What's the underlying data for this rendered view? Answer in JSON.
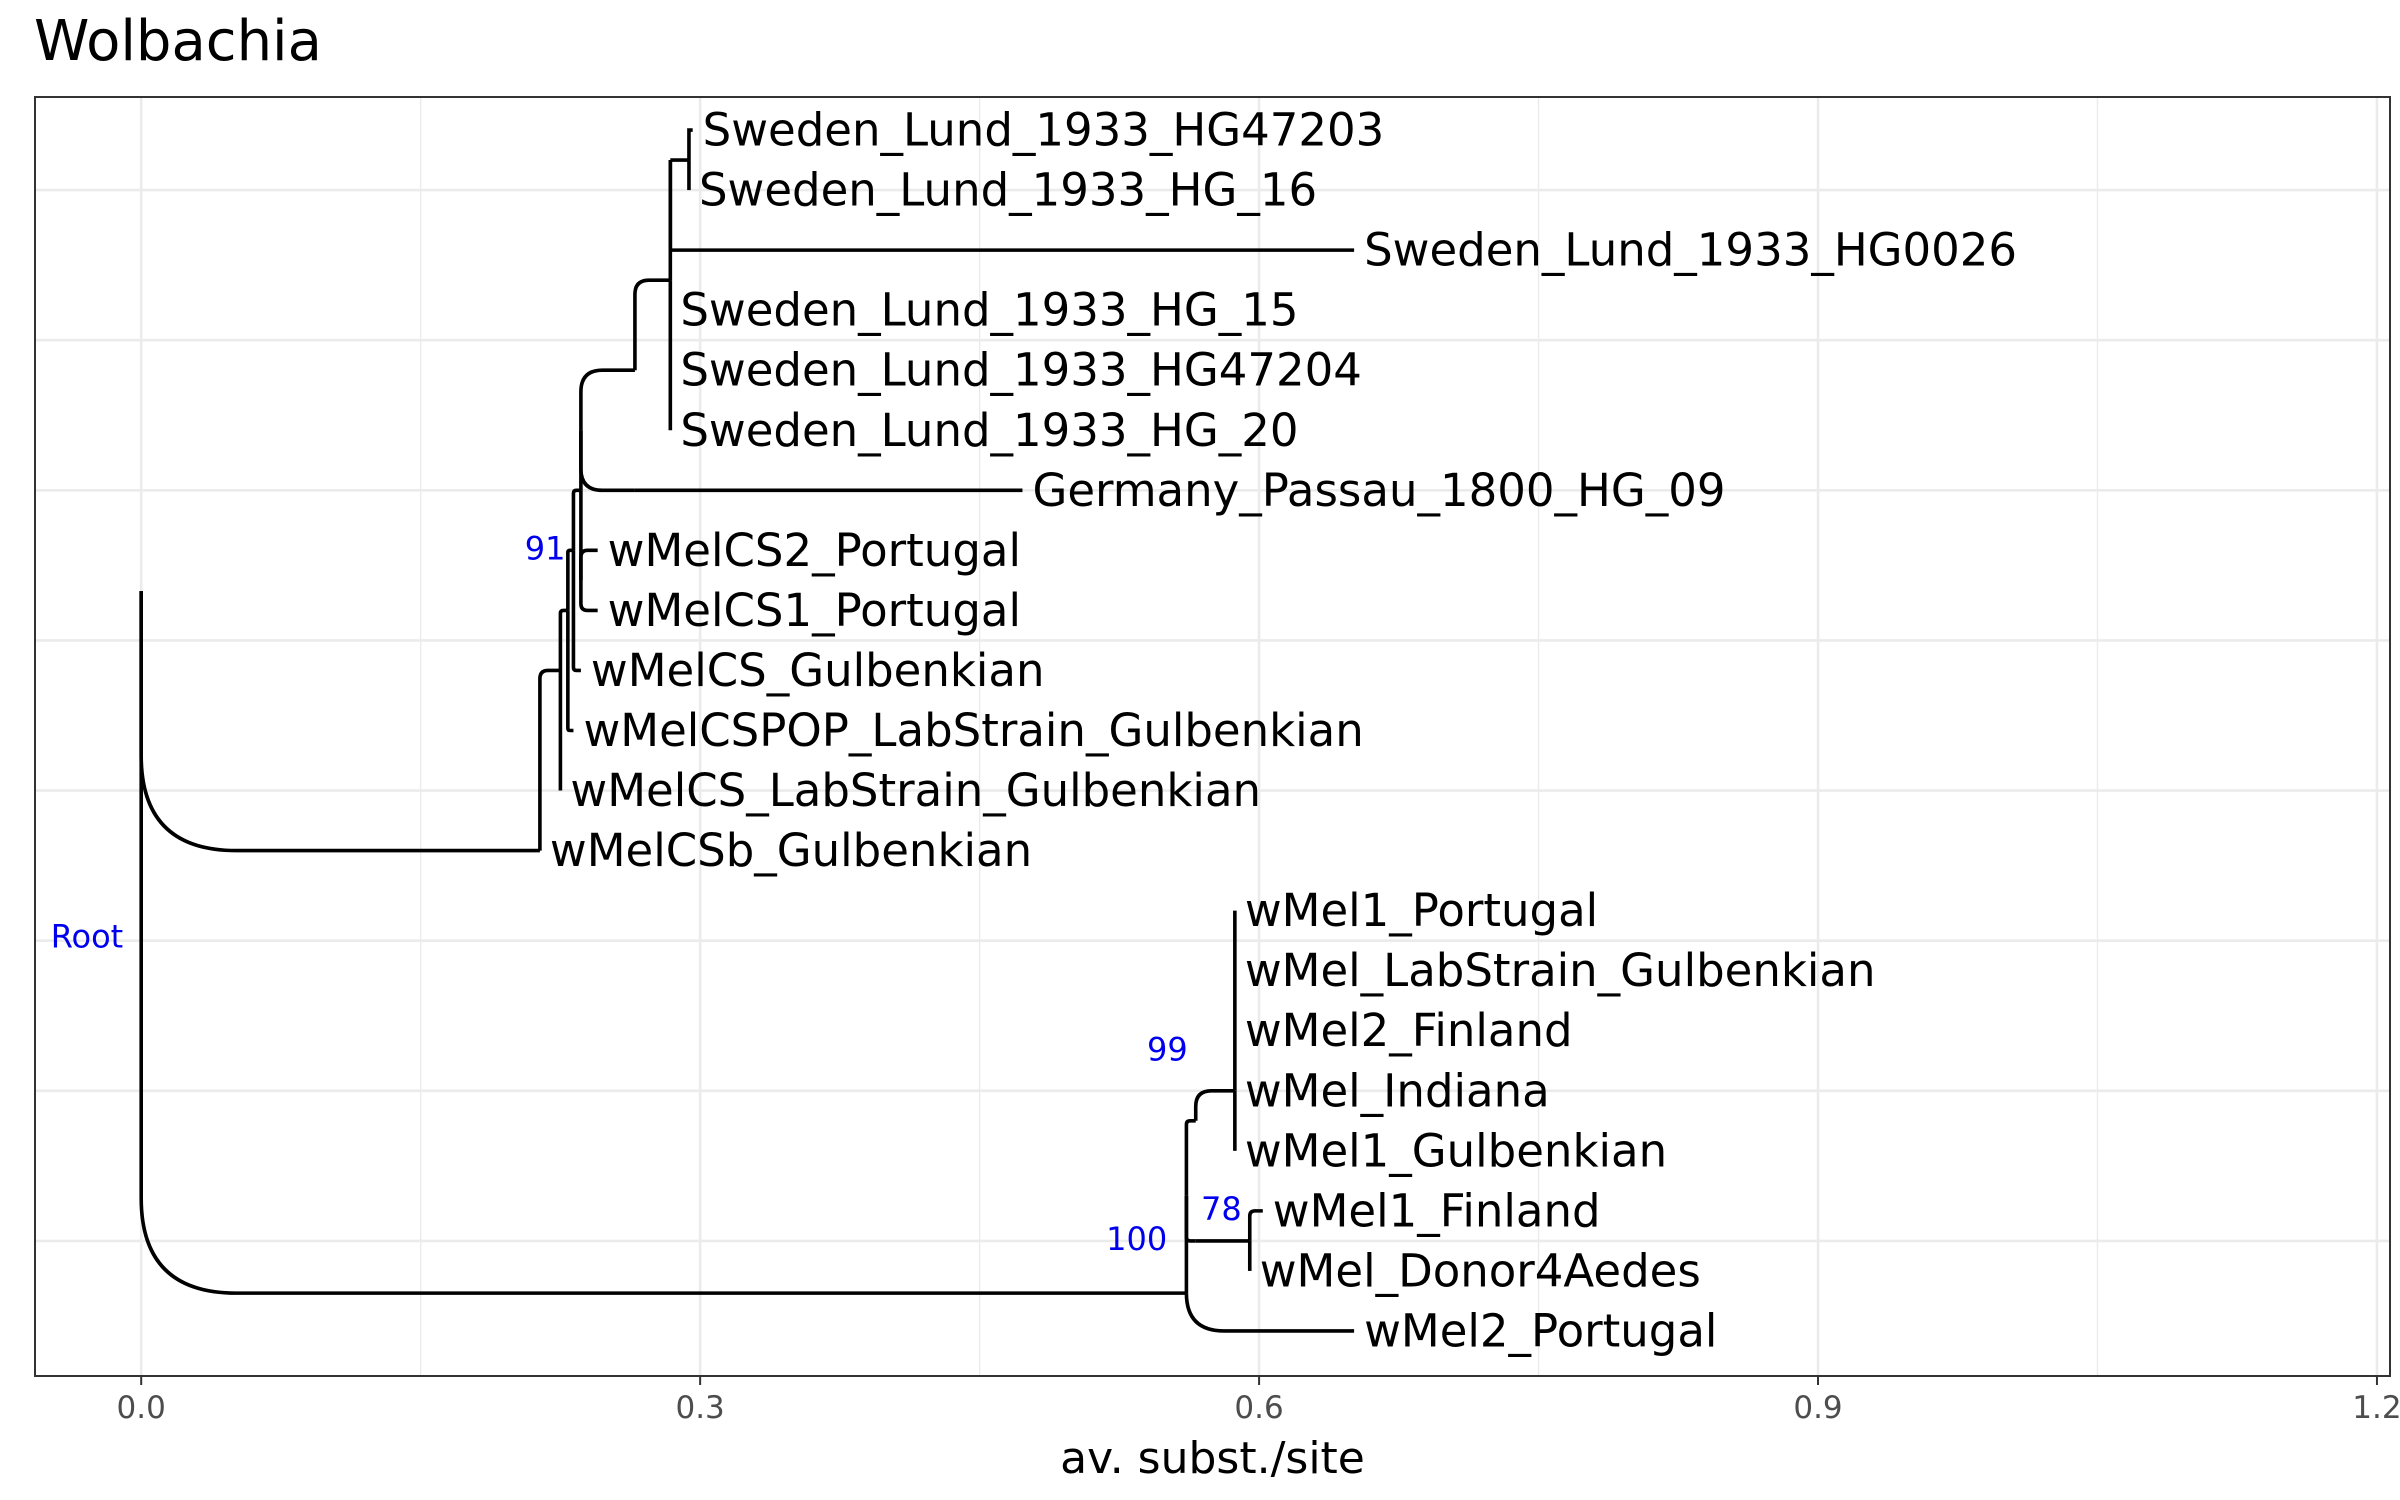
{
  "title": "Wolbachia",
  "x_axis": {
    "title": "av. subst./site",
    "range": [
      -0.057,
      1.207
    ],
    "ticks": [
      {
        "value": 0.0,
        "label": "0.0"
      },
      {
        "value": 0.3,
        "label": "0.3"
      },
      {
        "value": 0.6,
        "label": "0.6"
      },
      {
        "value": 0.9,
        "label": "0.9"
      },
      {
        "value": 1.2,
        "label": "1.2"
      }
    ],
    "minor_ticks": [
      0.15,
      0.45,
      0.75,
      1.05
    ],
    "grid": true
  },
  "y_range": [
    0.25,
    21.55
  ],
  "y_gridlines": [
    2.5,
    5,
    7.5,
    10,
    12.5,
    15,
    17.5,
    20
  ],
  "colors": {
    "branch": "#000000",
    "support": "#0000ee",
    "grid": "#ebebeb",
    "panel_border": "#333333"
  },
  "tree": {
    "tips": [
      {
        "label": "Sweden_Lund_1933_HG47203",
        "x": 0.296,
        "y": 21
      },
      {
        "label": "Sweden_Lund_1933_HG_16",
        "x": 0.294,
        "y": 20
      },
      {
        "label": "Sweden_Lund_1933_HG0026",
        "x": 0.651,
        "y": 19
      },
      {
        "label": "Sweden_Lund_1933_HG_15",
        "x": 0.284,
        "y": 18
      },
      {
        "label": "Sweden_Lund_1933_HG47204",
        "x": 0.284,
        "y": 17
      },
      {
        "label": "Sweden_Lund_1933_HG_20",
        "x": 0.284,
        "y": 16
      },
      {
        "label": "Germany_Passau_1800_HG_09",
        "x": 0.473,
        "y": 15
      },
      {
        "label": "wMelCS2_Portugal",
        "x": 0.245,
        "y": 14
      },
      {
        "label": "wMelCS1_Portugal",
        "x": 0.245,
        "y": 13
      },
      {
        "label": "wMelCS_Gulbenkian",
        "x": 0.236,
        "y": 12
      },
      {
        "label": "wMelCSPOP_LabStrain_Gulbenkian",
        "x": 0.232,
        "y": 11
      },
      {
        "label": "wMelCS_LabStrain_Gulbenkian",
        "x": 0.225,
        "y": 10
      },
      {
        "label": "wMelCSb_Gulbenkian",
        "x": 0.214,
        "y": 9
      },
      {
        "label": "wMel1_Portugal",
        "x": 0.587,
        "y": 8
      },
      {
        "label": "wMel_LabStrain_Gulbenkian",
        "x": 0.587,
        "y": 7
      },
      {
        "label": "wMel2_Finland",
        "x": 0.587,
        "y": 6
      },
      {
        "label": "wMel_Indiana",
        "x": 0.587,
        "y": 5
      },
      {
        "label": "wMel1_Gulbenkian",
        "x": 0.587,
        "y": 4
      },
      {
        "label": "wMel1_Finland",
        "x": 0.602,
        "y": 3
      },
      {
        "label": "wMel_Donor4Aedes",
        "x": 0.595,
        "y": 2
      },
      {
        "label": "wMel2_Portugal",
        "x": 0.651,
        "y": 1
      }
    ],
    "branches": [
      {
        "from": [
          0.0,
          13.32
        ],
        "to": [
          0.214,
          9.0
        ]
      },
      {
        "from": [
          0.0,
          13.32
        ],
        "to": [
          0.561,
          1.63
        ]
      },
      {
        "from": [
          0.214,
          10.5
        ],
        "to": [
          0.214,
          9.0
        ]
      },
      {
        "from": [
          0.214,
          10.5
        ],
        "to": [
          0.225,
          12.0
        ]
      },
      {
        "from": [
          0.225,
          12.0
        ],
        "to": [
          0.225,
          10.0
        ]
      },
      {
        "from": [
          0.225,
          12.0
        ],
        "to": [
          0.229,
          13.0
        ]
      },
      {
        "from": [
          0.229,
          13.0
        ],
        "to": [
          0.232,
          11.0
        ]
      },
      {
        "from": [
          0.229,
          13.0
        ],
        "to": [
          0.232,
          14.0
        ]
      },
      {
        "from": [
          0.232,
          14.0
        ],
        "to": [
          0.236,
          12.0
        ]
      },
      {
        "from": [
          0.232,
          14.0
        ],
        "to": [
          0.236,
          15.0
        ]
      },
      {
        "from": [
          0.236,
          15.0
        ],
        "to": [
          0.236,
          13.5
        ]
      },
      {
        "from": [
          0.236,
          15.0
        ],
        "to": [
          0.236,
          16.0
        ]
      },
      {
        "from": [
          0.236,
          13.5
        ],
        "to": [
          0.245,
          14.0
        ]
      },
      {
        "from": [
          0.236,
          13.5
        ],
        "to": [
          0.245,
          13.0
        ]
      },
      {
        "from": [
          0.236,
          16.0
        ],
        "to": [
          0.265,
          17.0
        ]
      },
      {
        "from": [
          0.236,
          16.0
        ],
        "to": [
          0.265,
          15.0
        ]
      },
      {
        "from": [
          0.265,
          17.0
        ],
        "to": [
          0.284,
          18.5
        ]
      },
      {
        "from": [
          0.265,
          15.0
        ],
        "to": [
          0.473,
          15.0
        ]
      },
      {
        "from": [
          0.284,
          18.5
        ],
        "to": [
          0.284,
          16.0
        ]
      },
      {
        "from": [
          0.284,
          18.5
        ],
        "to": [
          0.284,
          20.5
        ]
      },
      {
        "from": [
          0.284,
          20.5
        ],
        "to": [
          0.284,
          19.0
        ]
      },
      {
        "from": [
          0.284,
          20.5
        ],
        "to": [
          0.294,
          20.5
        ]
      },
      {
        "from": [
          0.284,
          19.0
        ],
        "to": [
          0.651,
          19.0
        ]
      },
      {
        "from": [
          0.294,
          20.5
        ],
        "to": [
          0.296,
          21.0
        ]
      },
      {
        "from": [
          0.294,
          20.5
        ],
        "to": [
          0.294,
          20.0
        ]
      },
      {
        "from": [
          0.561,
          1.63
        ],
        "to": [
          0.561,
          3.25
        ]
      },
      {
        "from": [
          0.561,
          1.63
        ],
        "to": [
          0.651,
          1.0
        ]
      },
      {
        "from": [
          0.561,
          3.25
        ],
        "to": [
          0.566,
          4.5
        ]
      },
      {
        "from": [
          0.561,
          3.25
        ],
        "to": [
          0.566,
          2.5
        ]
      },
      {
        "from": [
          0.566,
          4.5
        ],
        "to": [
          0.587,
          5.0
        ]
      },
      {
        "from": [
          0.566,
          2.5
        ],
        "to": [
          0.595,
          2.5
        ]
      },
      {
        "from": [
          0.587,
          5.0
        ],
        "to": [
          0.587,
          8.0
        ]
      },
      {
        "from": [
          0.587,
          5.0
        ],
        "to": [
          0.587,
          4.0
        ]
      },
      {
        "from": [
          0.595,
          2.5
        ],
        "to": [
          0.595,
          2.0
        ]
      },
      {
        "from": [
          0.595,
          2.5
        ],
        "to": [
          0.602,
          3.0
        ]
      }
    ],
    "node_labels": [
      {
        "text": "Root",
        "x": 0.0,
        "y": 7.57
      },
      {
        "text": "91",
        "x": 0.232,
        "y": 14.0
      },
      {
        "text": "99",
        "x": 0.566,
        "y": 5.65
      },
      {
        "text": "100",
        "x": 0.555,
        "y": 2.5
      },
      {
        "text": "78",
        "x": 0.595,
        "y": 3.0
      }
    ]
  }
}
